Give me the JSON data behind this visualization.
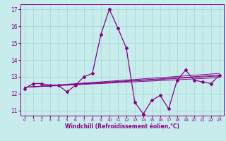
{
  "xlabel": "Windchill (Refroidissement éolien,°C)",
  "bg_color": "#c8ecec",
  "line_color": "#880088",
  "grid_color": "#aadddd",
  "xlim": [
    -0.5,
    23.5
  ],
  "ylim": [
    10.7,
    17.3
  ],
  "yticks": [
    11,
    12,
    13,
    14,
    15,
    16,
    17
  ],
  "xticks": [
    0,
    1,
    2,
    3,
    4,
    5,
    6,
    7,
    8,
    9,
    10,
    11,
    12,
    13,
    14,
    15,
    16,
    17,
    18,
    19,
    20,
    21,
    22,
    23
  ],
  "series_y": [
    12.3,
    12.6,
    12.6,
    12.5,
    12.5,
    12.1,
    12.5,
    13.0,
    13.2,
    15.5,
    17.0,
    15.9,
    14.7,
    11.5,
    10.8,
    11.6,
    11.9,
    11.1,
    12.8,
    13.4,
    12.8,
    12.7,
    12.6,
    13.1
  ],
  "trend_lines": [
    {
      "x0": 0,
      "y0": 12.38,
      "x1": 23,
      "y1": 12.95
    },
    {
      "x0": 0,
      "y0": 12.38,
      "x1": 23,
      "y1": 13.05
    },
    {
      "x0": 0,
      "y0": 12.38,
      "x1": 23,
      "y1": 13.1
    },
    {
      "x0": 0,
      "y0": 12.38,
      "x1": 23,
      "y1": 13.2
    }
  ]
}
